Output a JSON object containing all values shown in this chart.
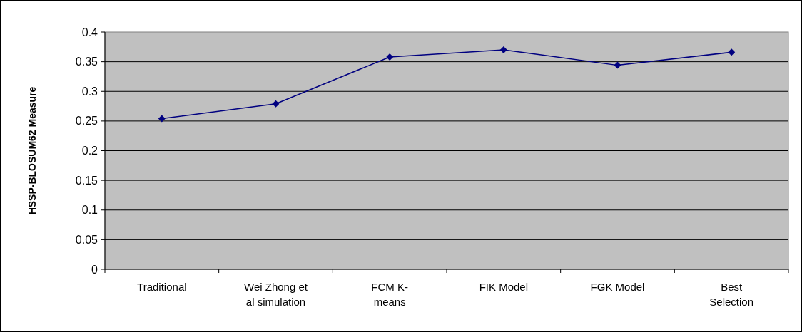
{
  "chart_data": {
    "type": "line",
    "ylabel": "HSSP-BLOSUM62 Measure",
    "categories": [
      "Traditional",
      "Wei Zhong et al simulation",
      "FCM K-means",
      "FIK Model",
      "FGK Model",
      "Best Selection"
    ],
    "series": [
      {
        "color": "#000080",
        "values": [
          0.254,
          0.279,
          0.358,
          0.37,
          0.344,
          0.366
        ]
      }
    ],
    "ylim": [
      0,
      0.4
    ],
    "yticks": [
      0,
      0.05,
      0.1,
      0.15,
      0.2,
      0.25,
      0.3,
      0.35,
      0.4
    ],
    "grid": "y",
    "marker": "diamond",
    "line_style": "solid"
  }
}
